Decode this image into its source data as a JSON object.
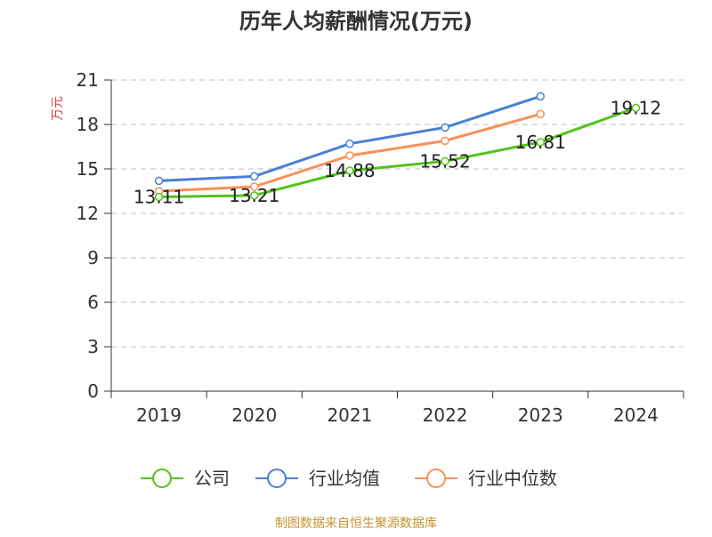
{
  "chart_data": {
    "type": "line",
    "title": "历年人均薪酬情况(万元)",
    "ylabel": "万元",
    "xlabel": "",
    "categories": [
      "2019",
      "2020",
      "2021",
      "2022",
      "2023",
      "2024"
    ],
    "ylim": [
      0,
      21
    ],
    "yticks": [
      0,
      3,
      6,
      9,
      12,
      15,
      18,
      21
    ],
    "grid": true,
    "legend_position": "bottom",
    "series": [
      {
        "name": "公司",
        "color": "#52c41a",
        "values": [
          13.11,
          13.21,
          14.88,
          15.52,
          16.81,
          19.12
        ],
        "labels": [
          "13.11",
          "13.21",
          "14.88",
          "15.52",
          "16.81",
          "19.12"
        ]
      },
      {
        "name": "行业均值",
        "color": "#4a7fd6",
        "values": [
          14.2,
          14.5,
          16.7,
          17.8,
          19.9,
          null
        ]
      },
      {
        "name": "行业中位数",
        "color": "#f7915a",
        "values": [
          13.5,
          13.8,
          15.9,
          16.9,
          18.7,
          null
        ]
      }
    ]
  },
  "source_text": "制图数据来自恒生聚源数据库"
}
